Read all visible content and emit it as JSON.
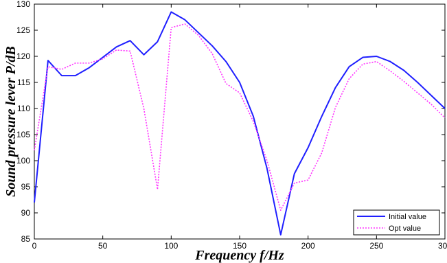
{
  "chart_data": {
    "type": "line",
    "xlabel": "Frequency f/Hz",
    "ylabel": "Sound pressure lever P/dB",
    "xlim": [
      0,
      300
    ],
    "ylim": [
      85,
      130
    ],
    "xticks": [
      "0",
      "50",
      "100",
      "150",
      "200",
      "250",
      "300"
    ],
    "yticks": [
      "85",
      "90",
      "95",
      "100",
      "105",
      "110",
      "115",
      "120",
      "125",
      "130"
    ],
    "grid": false,
    "legend_position": "bottom-right",
    "x": [
      0,
      10,
      20,
      30,
      40,
      50,
      60,
      70,
      80,
      90,
      100,
      110,
      120,
      130,
      140,
      150,
      160,
      170,
      180,
      190,
      200,
      210,
      220,
      230,
      240,
      250,
      260,
      270,
      280,
      290,
      300
    ],
    "series": [
      {
        "name": "Initial value",
        "color": "#1f1fff",
        "style": "solid",
        "values": [
          92,
          119.2,
          116.3,
          116.3,
          117.8,
          119.8,
          121.8,
          123,
          120.3,
          122.8,
          128.5,
          127,
          124.5,
          122,
          119,
          115,
          108.5,
          98.5,
          85.8,
          97.5,
          102.5,
          108.5,
          114,
          118,
          119.8,
          120,
          119,
          117.3,
          115,
          112.5,
          110
        ]
      },
      {
        "name": "Opt value",
        "color": "#ff33ff",
        "style": "dotted",
        "values": [
          102,
          118,
          117.5,
          118.7,
          118.7,
          119.5,
          121.2,
          121,
          110,
          94.5,
          125.5,
          126.2,
          124,
          120.5,
          114.8,
          113,
          107.5,
          100,
          90.5,
          95.7,
          96.3,
          101.5,
          110.2,
          115.7,
          118.5,
          119,
          117.2,
          115.2,
          113,
          110.8,
          108.2
        ]
      }
    ]
  }
}
